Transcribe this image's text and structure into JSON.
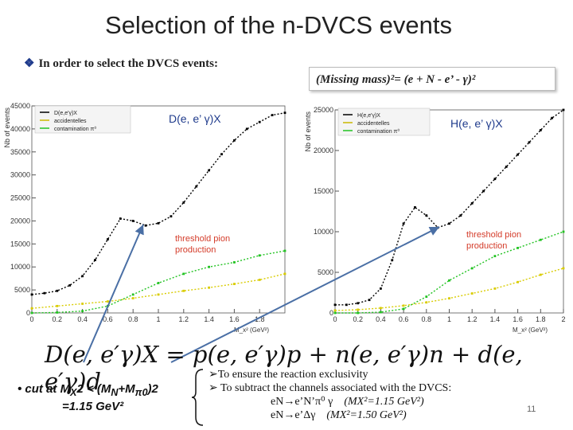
{
  "slide": {
    "title": "Selection of the n-DVCS events",
    "bullet": "In order to select the DVCS events:",
    "formula": "(Missing mass)²= (e + N - e’ - γ)²",
    "equation": "D(e, e′γ)X = p(e, e′γ)p + n(e, e′γ)n + d(e, e′γ)d",
    "cut_line1": "• cut at M",
    "cut_line1_sub": "X",
    "cut_line1_rest": "2 < (M",
    "cut_mn": "N",
    "cut_plus": "+M",
    "cut_pi": "π0",
    "cut_close": ")2",
    "cut_line2": "=1.15 GeV²",
    "reason1": "To ensure the reaction exclusivity",
    "reason2": "To subtract the channels associated with the DVCS:",
    "channel1": "eN→e’N’π⁰ γ",
    "channel1_mx": "(MX²=1.15 GeV²)",
    "channel2": "eN→e’Δγ",
    "channel2_mx": "(MX²=1.50 GeV²)",
    "page_number": "11",
    "bullet_icon": "diamond-bullet-icon",
    "arrow_icon": "arrow-right-icon",
    "brace_icon": "left-brace-icon"
  },
  "chart_data": [
    {
      "type": "scatter",
      "title": "D(e, e’ γ)X",
      "ylabel": "Nb of events",
      "xlabel": "M_x² (GeV²)",
      "xlim": [
        0,
        2
      ],
      "ylim": [
        0,
        45000
      ],
      "xticks": [
        "0",
        "0.2",
        "0.4",
        "0.6",
        "0.8",
        "1",
        "1.2",
        "1.4",
        "1.6",
        "1.8"
      ],
      "yticks": [
        "0",
        "5000",
        "10000",
        "15000",
        "20000",
        "25000",
        "30000",
        "35000",
        "40000",
        "45000"
      ],
      "legend": [
        "D(e,e'γ)X",
        "accidentelles",
        "contamination π⁰"
      ],
      "legend_position": "top-left",
      "annotation": "threshold pion production",
      "series": [
        {
          "name": "D(e,e'γ)X",
          "color": "#000000",
          "x": [
            0.0,
            0.1,
            0.2,
            0.3,
            0.4,
            0.5,
            0.6,
            0.7,
            0.8,
            0.9,
            1.0,
            1.1,
            1.2,
            1.3,
            1.4,
            1.5,
            1.6,
            1.7,
            1.8,
            1.9,
            2.0
          ],
          "y": [
            4000,
            4300,
            4800,
            6000,
            8000,
            11500,
            16000,
            20500,
            20000,
            19000,
            19500,
            21000,
            24000,
            27500,
            31000,
            34500,
            37500,
            40000,
            41500,
            43000,
            43500
          ]
        },
        {
          "name": "accidentelles",
          "color": "#e8e000",
          "x": [
            0.0,
            0.2,
            0.4,
            0.6,
            0.8,
            1.0,
            1.2,
            1.4,
            1.6,
            1.8,
            2.0
          ],
          "y": [
            1000,
            1500,
            2000,
            2500,
            3200,
            4000,
            4800,
            5500,
            6300,
            7200,
            8500
          ]
        },
        {
          "name": "contamination π⁰",
          "color": "#22c322",
          "x": [
            0.0,
            0.2,
            0.4,
            0.6,
            0.8,
            1.0,
            1.2,
            1.4,
            1.6,
            1.8,
            2.0
          ],
          "y": [
            0,
            100,
            400,
            1500,
            4000,
            6500,
            8500,
            10000,
            11000,
            12500,
            13500
          ]
        }
      ]
    },
    {
      "type": "scatter",
      "title": "H(e, e’ γ)X",
      "ylabel": "Nb of events",
      "xlabel": "M_x² (GeV²)",
      "xlim": [
        0,
        2
      ],
      "ylim": [
        0,
        25000
      ],
      "xticks": [
        "0",
        "0.2",
        "0.4",
        "0.6",
        "0.8",
        "1",
        "1.2",
        "1.4",
        "1.6",
        "1.8",
        "2"
      ],
      "yticks": [
        "0",
        "5000",
        "10000",
        "15000",
        "20000",
        "25000"
      ],
      "legend": [
        "H(e,e'γ)X",
        "accidentelles",
        "contamination π⁰"
      ],
      "legend_position": "top-left",
      "annotation": "threshold pion production",
      "series": [
        {
          "name": "H(e,e'γ)X",
          "color": "#000000",
          "x": [
            0.0,
            0.1,
            0.2,
            0.3,
            0.4,
            0.5,
            0.6,
            0.7,
            0.8,
            0.9,
            1.0,
            1.1,
            1.2,
            1.3,
            1.4,
            1.5,
            1.6,
            1.7,
            1.8,
            1.9,
            2.0
          ],
          "y": [
            1000,
            1000,
            1200,
            1600,
            3000,
            6500,
            11000,
            13000,
            12000,
            10500,
            11000,
            12000,
            13500,
            15000,
            16500,
            18000,
            19500,
            21000,
            22500,
            24000,
            25000
          ]
        },
        {
          "name": "accidentelles",
          "color": "#e8e000",
          "x": [
            0.0,
            0.2,
            0.4,
            0.6,
            0.8,
            1.0,
            1.2,
            1.4,
            1.6,
            1.8,
            2.0
          ],
          "y": [
            300,
            400,
            600,
            900,
            1300,
            1800,
            2400,
            3000,
            3800,
            4700,
            5500
          ]
        },
        {
          "name": "contamination π⁰",
          "color": "#22c322",
          "x": [
            0.0,
            0.2,
            0.4,
            0.6,
            0.8,
            1.0,
            1.2,
            1.4,
            1.6,
            1.8,
            2.0
          ],
          "y": [
            0,
            0,
            100,
            500,
            2000,
            4000,
            5500,
            7000,
            8000,
            9000,
            10000
          ]
        }
      ]
    }
  ]
}
